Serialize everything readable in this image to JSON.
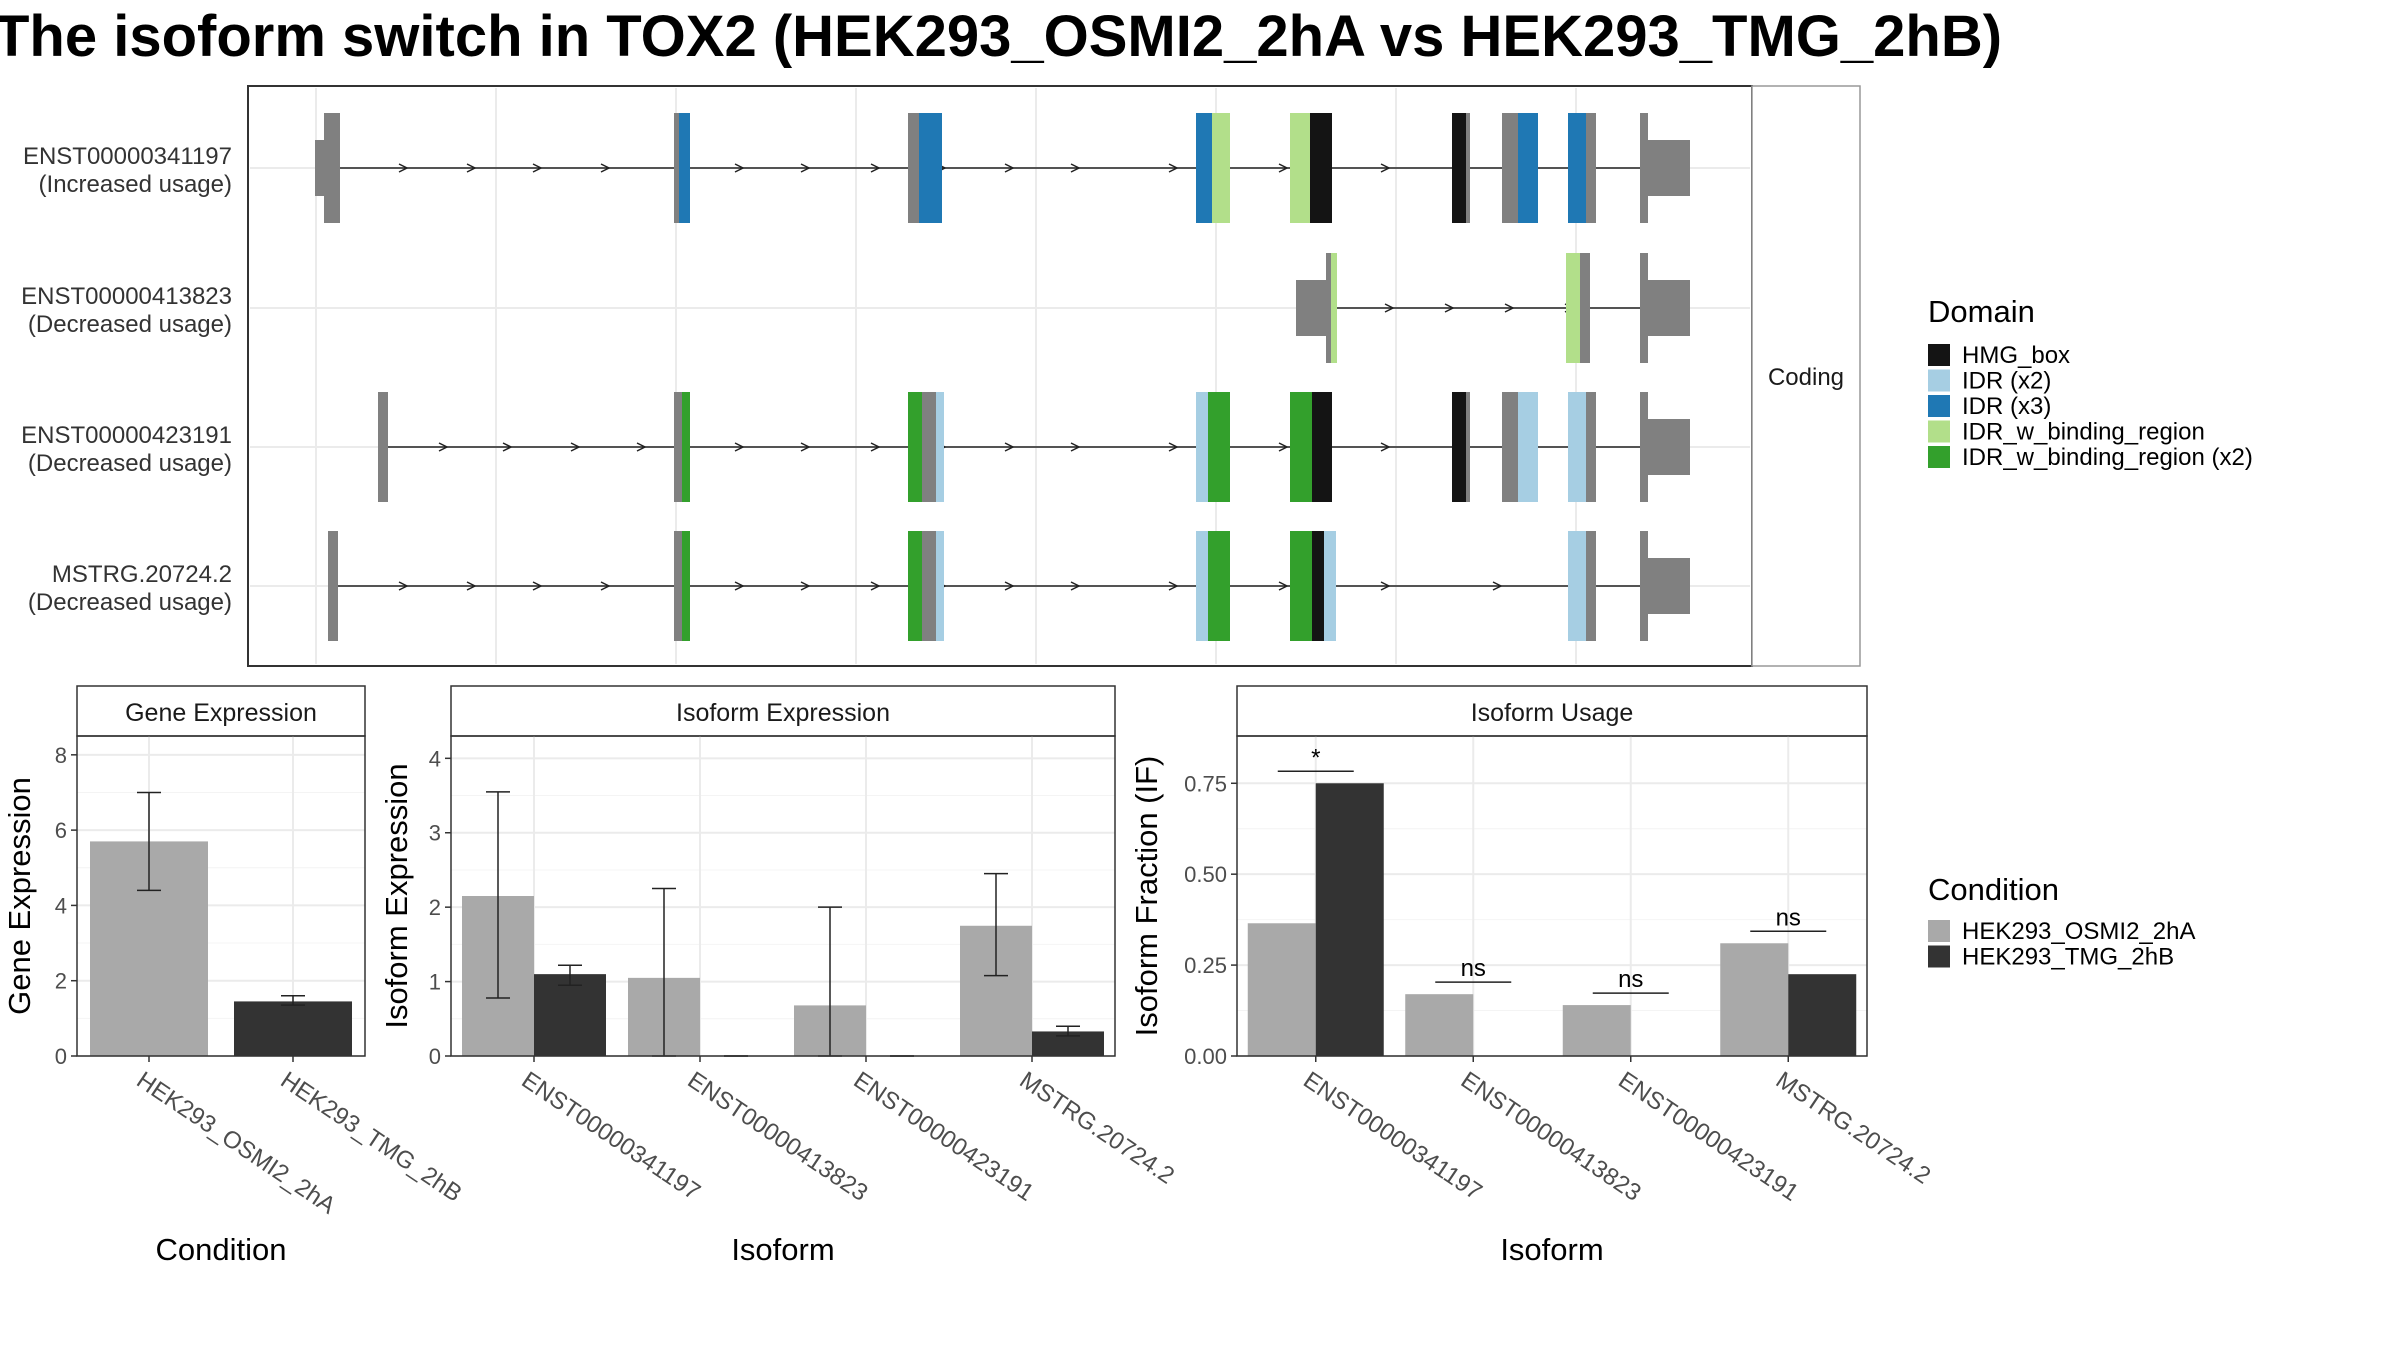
{
  "title": "The isoform switch in TOX2 (HEK293_OSMI2_2hA vs HEK293_TMG_2hB)",
  "transcripts": {
    "facet_label": "Coding",
    "rows": [
      {
        "id": "ENST00000341197",
        "usage": "(Increased usage)"
      },
      {
        "id": "ENST00000413823",
        "usage": "(Decreased usage)"
      },
      {
        "id": "ENST00000423191",
        "usage": "(Decreased usage)"
      },
      {
        "id": "MSTRG.20724.2",
        "usage": "(Decreased usage)"
      }
    ]
  },
  "domain_legend": {
    "title": "Domain",
    "items": [
      {
        "label": "HMG_box",
        "color": "#141414"
      },
      {
        "label": "IDR (x2)",
        "color": "#a6cee3"
      },
      {
        "label": "IDR (x3)",
        "color": "#1f78b4"
      },
      {
        "label": "IDR_w_binding_region",
        "color": "#b2df8a"
      },
      {
        "label": "IDR_w_binding_region (x2)",
        "color": "#33a02c"
      }
    ]
  },
  "condition_legend": {
    "title": "Condition",
    "items": [
      {
        "label": "HEK293_OSMI2_2hA",
        "color": "#a9a9a9"
      },
      {
        "label": "HEK293_TMG_2hB",
        "color": "#333333"
      }
    ]
  },
  "chart_data": [
    {
      "type": "bar",
      "title": "Gene Expression",
      "xlabel": "Condition",
      "ylabel": "Gene Expression",
      "categories": [
        "HEK293_OSMI2_2hA",
        "HEK293_TMG_2hB"
      ],
      "values": [
        5.7,
        1.45
      ],
      "errors": [
        [
          4.4,
          7.0
        ],
        [
          1.35,
          1.6
        ]
      ],
      "ylim": [
        0,
        8.5
      ],
      "yticks": [
        0,
        2,
        4,
        6,
        8
      ]
    },
    {
      "type": "bar",
      "title": "Isoform Expression",
      "xlabel": "Isoform",
      "ylabel": "Isoform Expression",
      "categories": [
        "ENST00000341197",
        "ENST00000413823",
        "ENST00000423191",
        "MSTRG.20724.2"
      ],
      "series": [
        {
          "name": "HEK293_OSMI2_2hA",
          "values": [
            2.15,
            1.05,
            0.68,
            1.75
          ],
          "errors": [
            [
              0.78,
              3.55
            ],
            [
              0.0,
              2.25
            ],
            [
              0.0,
              2.0
            ],
            [
              1.08,
              2.45
            ]
          ]
        },
        {
          "name": "HEK293_TMG_2hB",
          "values": [
            1.1,
            0.0,
            0.0,
            0.33
          ],
          "errors": [
            [
              0.95,
              1.22
            ],
            [
              0.0,
              0.0
            ],
            [
              0.0,
              0.0
            ],
            [
              0.27,
              0.4
            ]
          ]
        }
      ],
      "ylim": [
        0,
        4.3
      ],
      "yticks": [
        0,
        1,
        2,
        3,
        4
      ]
    },
    {
      "type": "bar",
      "title": "Isoform Usage",
      "xlabel": "Isoform",
      "ylabel": "Isoform Fraction (IF)",
      "categories": [
        "ENST00000341197",
        "ENST00000413823",
        "ENST00000423191",
        "MSTRG.20724.2"
      ],
      "series": [
        {
          "name": "HEK293_OSMI2_2hA",
          "values": [
            0.365,
            0.17,
            0.14,
            0.31
          ]
        },
        {
          "name": "HEK293_TMG_2hB",
          "values": [
            0.75,
            0.0,
            0.0,
            0.225
          ]
        }
      ],
      "significance": [
        "*",
        "ns",
        "ns",
        "ns"
      ],
      "ylim": [
        0,
        0.88
      ],
      "yticks": [
        "0.00",
        "0.25",
        "0.50",
        "0.75"
      ]
    }
  ]
}
